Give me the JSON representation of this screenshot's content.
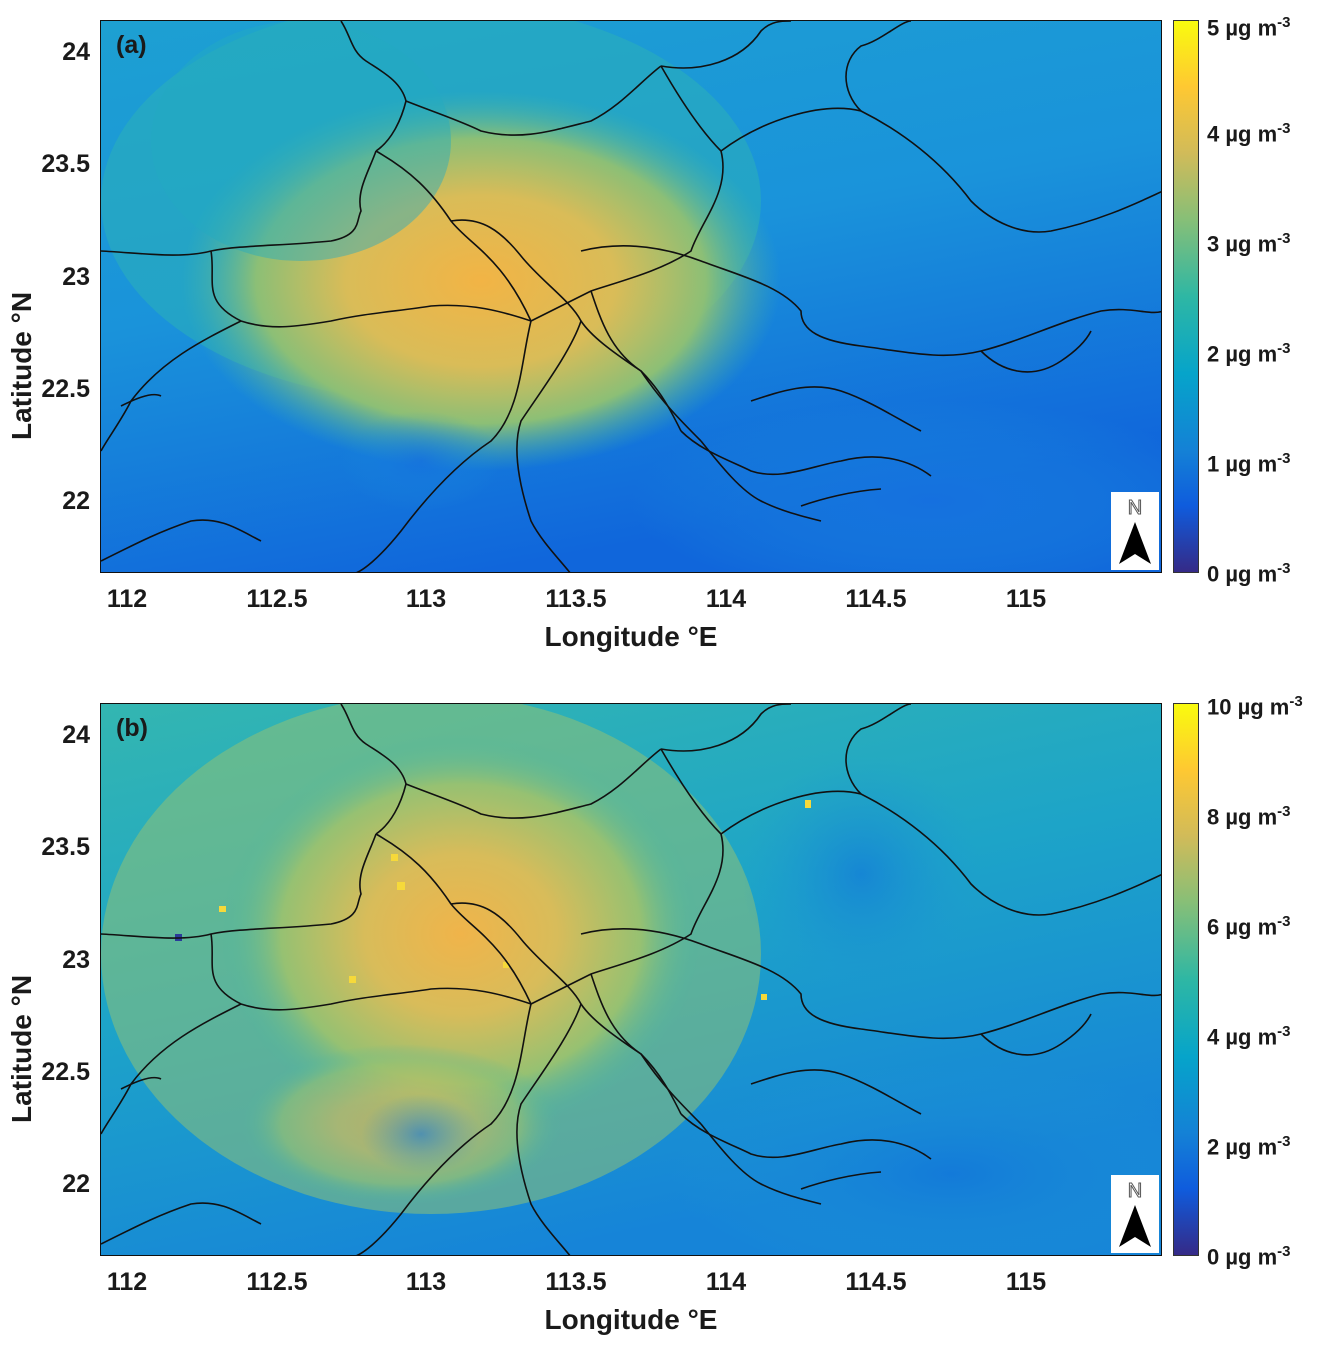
{
  "panels": [
    {
      "label": "(a)",
      "colorbar_ticks": [
        "0 µg m",
        "1 µg m",
        "2 µg m",
        "3 µg m",
        "4 µg m",
        "5 µg m"
      ],
      "colorbar_exponent": "-3",
      "colorbar_max": 5
    },
    {
      "label": "(b)",
      "colorbar_ticks": [
        "0 µg m",
        "2 µg m",
        "4 µg m",
        "6 µg m",
        "8 µg m",
        "10 µg m"
      ],
      "colorbar_exponent": "-3",
      "colorbar_max": 10
    }
  ],
  "axes": {
    "xlabel": "Longitude °E",
    "ylabel": "Latitude °N",
    "xticks": [
      "112",
      "112.5",
      "113",
      "113.5",
      "114",
      "114.5",
      "115"
    ],
    "yticks": [
      "24",
      "23.5",
      "23",
      "22.5",
      "22"
    ]
  },
  "north_arrow": {
    "letter": "N"
  },
  "colormap": "parula",
  "colors": {
    "low": "#352a87",
    "mid": "#2eb7a4",
    "high": "#f9fb0e",
    "boundary": "#111111"
  }
}
